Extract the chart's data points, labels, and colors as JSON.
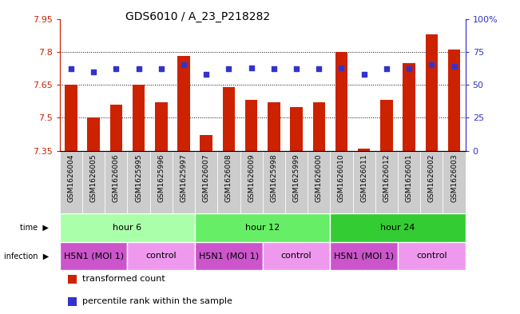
{
  "title": "GDS6010 / A_23_P218282",
  "samples": [
    "GSM1626004",
    "GSM1626005",
    "GSM1626006",
    "GSM1625995",
    "GSM1625996",
    "GSM1625997",
    "GSM1626007",
    "GSM1626008",
    "GSM1626009",
    "GSM1625998",
    "GSM1625999",
    "GSM1626000",
    "GSM1626010",
    "GSM1626011",
    "GSM1626012",
    "GSM1626001",
    "GSM1626002",
    "GSM1626003"
  ],
  "bar_values": [
    7.65,
    7.5,
    7.56,
    7.65,
    7.57,
    7.78,
    7.42,
    7.64,
    7.58,
    7.57,
    7.55,
    7.57,
    7.8,
    7.36,
    7.58,
    7.75,
    7.88,
    7.81
  ],
  "dot_values": [
    62,
    60,
    62,
    62,
    62,
    65,
    58,
    62,
    63,
    62,
    62,
    62,
    63,
    58,
    62,
    62,
    65,
    64
  ],
  "ylim": [
    7.35,
    7.95
  ],
  "y_ticks": [
    7.35,
    7.5,
    7.65,
    7.8,
    7.95
  ],
  "y_right_ticks": [
    0,
    25,
    50,
    75,
    100
  ],
  "y_right_labels": [
    "0",
    "25",
    "50",
    "75",
    "100%"
  ],
  "bar_color": "#CC2200",
  "dot_color": "#3333CC",
  "grid_color": "#000000",
  "bg_color": "#FFFFFF",
  "left_tick_color": "#CC2200",
  "right_tick_color": "#3333CC",
  "tick_label_bg": "#CCCCCC",
  "time_groups": [
    {
      "label": "hour 6",
      "start": 0,
      "end": 6,
      "color": "#AAFFAA"
    },
    {
      "label": "hour 12",
      "start": 6,
      "end": 12,
      "color": "#66EE66"
    },
    {
      "label": "hour 24",
      "start": 12,
      "end": 18,
      "color": "#33CC33"
    }
  ],
  "infection_groups": [
    {
      "label": "H5N1 (MOI 1)",
      "start": 0,
      "end": 3,
      "color": "#CC55CC"
    },
    {
      "label": "control",
      "start": 3,
      "end": 6,
      "color": "#EE99EE"
    },
    {
      "label": "H5N1 (MOI 1)",
      "start": 6,
      "end": 9,
      "color": "#CC55CC"
    },
    {
      "label": "control",
      "start": 9,
      "end": 12,
      "color": "#EE99EE"
    },
    {
      "label": "H5N1 (MOI 1)",
      "start": 12,
      "end": 15,
      "color": "#CC55CC"
    },
    {
      "label": "control",
      "start": 15,
      "end": 18,
      "color": "#EE99EE"
    }
  ],
  "legend_items": [
    {
      "label": "transformed count",
      "color": "#CC2200"
    },
    {
      "label": "percentile rank within the sample",
      "color": "#3333CC"
    }
  ]
}
